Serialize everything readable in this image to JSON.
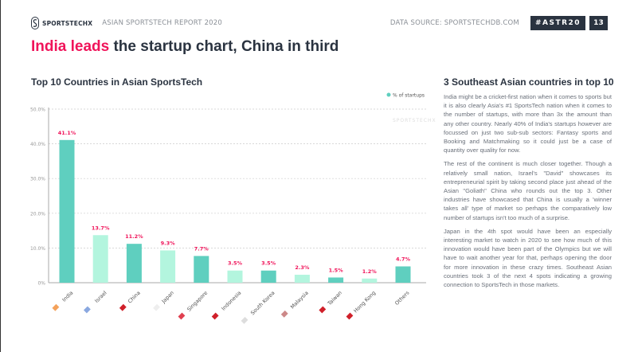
{
  "header": {
    "brand": "SPORTSTECHX",
    "report": "ASIAN SPORTSTECH REPORT 2020",
    "source": "DATA SOURCE: SPORTSTECHDB.COM",
    "hashtag": "#ASTR20",
    "page": "13"
  },
  "title": {
    "highlight": "India leads",
    "rest": " the startup chart, China in third"
  },
  "chart_title": "Top 10 Countries in Asian SportsTech",
  "side": {
    "title": "3 Southeast Asian countries in top 10",
    "paragraphs": [
      "India might be a cricket-first nation when it comes to sports but it is also clearly Asia's #1 SportsTech nation when it comes to the number of startups, with more than 3x the amount than any other country. Nearly 40% of India's startups however are focussed on just two sub-sub sectors: Fantasy sports and Booking and Matchmaking so it could just be a case of quantity over quality for now.",
      "The rest of the continent is much closer together. Though a relatively small nation, Israel's \"David\" showcases its entrepreneurial spirit by taking second place just ahead of the Asian \"Goliath\" China who rounds out the top 3. Other industries have showcased that China is usually a 'winner takes all' type of market so perhaps the comparatively low number of startups isn't too much of a surprise.",
      "Japan in the 4th spot would have been an especially interesting market to watch in 2020 to see how much of this innovation would have been part of the Olympics but we will have to wait another year for that, perhaps opening the door for more innovation in these crazy times. Southeast Asian countries took 3 of the next 4 spots indicating a growing connection to SportsTech in those markets."
    ]
  },
  "chart_data": {
    "type": "bar",
    "title": "Top 10 Countries in Asian SportsTech",
    "legend": "% of startups",
    "legend_position": "top-right",
    "watermark": "SPORTSTECHX",
    "categories": [
      "India",
      "Israel",
      "China",
      "Japan",
      "Singapore",
      "Indonesia",
      "South Korea",
      "Malaysia",
      "Taiwan",
      "Hong Kong",
      "Others"
    ],
    "values": [
      41.1,
      13.7,
      11.2,
      9.3,
      7.7,
      3.5,
      3.5,
      2.3,
      1.5,
      1.2,
      4.7
    ],
    "labels": [
      "41.1%",
      "13.7%",
      "11.2%",
      "9.3%",
      "7.7%",
      "3.5%",
      "3.5%",
      "2.3%",
      "1.5%",
      "1.2%",
      "4.7%"
    ],
    "yticks": [
      "0%",
      "10.0%",
      "20.0%",
      "30.0%",
      "40.0%",
      "50.0%"
    ],
    "ylim": [
      0,
      50
    ],
    "colors": [
      "#5fcfbf",
      "#b3f5de"
    ],
    "label_color": "#f0145a"
  }
}
